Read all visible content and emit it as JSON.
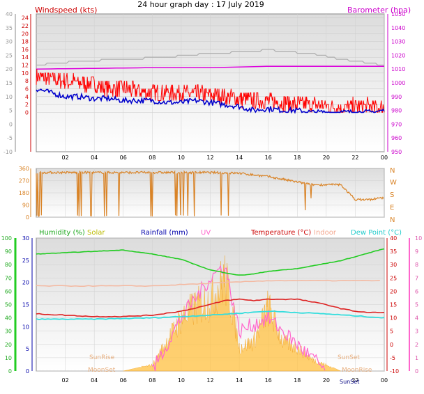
{
  "title": "24 hour graph day : 17 July 2019",
  "labels": {
    "windspeed": "Windspeed (kts)",
    "barometer": "Barometer (hpa)",
    "humidity": "Humidity (%)",
    "solar": "Solar",
    "rainfall": "Rainfall (mm)",
    "uv": "UV",
    "temperature": "Temperature (°C)",
    "indoor": "Indoor",
    "dewpoint": "Dew Point (°C)",
    "sunrise": "SunRise",
    "sunset": "SunSet",
    "moonset": "MoonSet",
    "moonrise": "MoonRise"
  },
  "colors": {
    "windspeed": "#cc0000",
    "gust": "#ff0000",
    "avg": "#0000cc",
    "barometer": "#dd00dd",
    "grey": "#b0b0b0",
    "direction": "#d98326",
    "humidity": "#22cc22",
    "solar": "#ffc040",
    "rainfall": "#0000aa",
    "uv": "#ff66cc",
    "temperature": "#dd2222",
    "indoor": "#f4b8a0",
    "dewpoint": "#33dddd",
    "yellow": "#cccc00"
  },
  "chart_data": [
    {
      "type": "line",
      "name": "wind",
      "x_ticks": [
        "02",
        "04",
        "06",
        "08",
        "10",
        "12",
        "14",
        "16",
        "18",
        "20",
        "22",
        "00"
      ],
      "ylim": [
        -10,
        25
      ],
      "yticks_left": [
        24,
        22,
        20,
        18,
        16,
        14,
        12,
        10,
        8,
        6,
        4,
        2,
        0
      ],
      "yticks_outer": [
        40,
        35,
        30,
        25,
        20,
        15,
        10,
        5,
        0,
        -5,
        -10
      ],
      "baro_ylim": [
        975,
        1050
      ],
      "yticks_baro": [
        1050,
        1040,
        1030,
        1020,
        1010,
        1000,
        990,
        980,
        970,
        960,
        950
      ],
      "series": [
        {
          "name": "gust",
          "values": [
            [
              0,
              9
            ],
            [
              1,
              8.5
            ],
            [
              2,
              8
            ],
            [
              3,
              7.5
            ],
            [
              4,
              7
            ],
            [
              5,
              6
            ],
            [
              6,
              6
            ],
            [
              7,
              5.5
            ],
            [
              8,
              5
            ],
            [
              9,
              5
            ],
            [
              10,
              5
            ],
            [
              11,
              4.5
            ],
            [
              12,
              4.5
            ],
            [
              13,
              4
            ],
            [
              14,
              3.5
            ],
            [
              15,
              3
            ],
            [
              16,
              3
            ],
            [
              17,
              2.5
            ],
            [
              18,
              2
            ],
            [
              19,
              2
            ],
            [
              20,
              1.5
            ],
            [
              21,
              1
            ],
            [
              22,
              1.5
            ],
            [
              23,
              1.5
            ],
            [
              24,
              1
            ]
          ]
        },
        {
          "name": "average",
          "values": [
            [
              0,
              6
            ],
            [
              1,
              5
            ],
            [
              2,
              4
            ],
            [
              3,
              4
            ],
            [
              4,
              3.5
            ],
            [
              5,
              3.5
            ],
            [
              6,
              3
            ],
            [
              7,
              3
            ],
            [
              8,
              3
            ],
            [
              9,
              2.5
            ],
            [
              10,
              2.5
            ],
            [
              11,
              3
            ],
            [
              12,
              2.5
            ],
            [
              13,
              2
            ],
            [
              14,
              1.5
            ],
            [
              15,
              0.5
            ],
            [
              16,
              1
            ],
            [
              17,
              0.5
            ],
            [
              18,
              0.5
            ],
            [
              19,
              0
            ],
            [
              20,
              0
            ],
            [
              21,
              0
            ],
            [
              22,
              0
            ],
            [
              23,
              0
            ],
            [
              24,
              0.5
            ]
          ]
        },
        {
          "name": "barometer",
          "values": [
            [
              0,
              1010
            ],
            [
              4,
              1010.5
            ],
            [
              8,
              1011
            ],
            [
              12,
              1011
            ],
            [
              16,
              1012
            ],
            [
              20,
              1012
            ],
            [
              24,
              1012
            ]
          ]
        },
        {
          "name": "grey",
          "values": [
            [
              0,
              12
            ],
            [
              3,
              13
            ],
            [
              6,
              13.5
            ],
            [
              9,
              14
            ],
            [
              12,
              15
            ],
            [
              15,
              15.5
            ],
            [
              16,
              16
            ],
            [
              17,
              15.5
            ],
            [
              19,
              15
            ],
            [
              21,
              13.5
            ],
            [
              23,
              12.5
            ],
            [
              24,
              12
            ]
          ]
        }
      ]
    },
    {
      "type": "line",
      "name": "wind direction",
      "x_ticks": [
        "02",
        "04",
        "06",
        "08",
        "10",
        "12",
        "14",
        "16",
        "18",
        "20",
        "22",
        "00"
      ],
      "ylim": [
        0,
        360
      ],
      "yticks": [
        360,
        270,
        180,
        90,
        0
      ],
      "compass": [
        "N",
        "W",
        "S",
        "E",
        "N"
      ],
      "series": [
        {
          "name": "direction",
          "values": [
            [
              0,
              330
            ],
            [
              4,
              330
            ],
            [
              8,
              330
            ],
            [
              12,
              330
            ],
            [
              14,
              325
            ],
            [
              16,
              300
            ],
            [
              17,
              280
            ],
            [
              18,
              260
            ],
            [
              19,
              240
            ],
            [
              20,
              240
            ],
            [
              21,
              240
            ],
            [
              22,
              130
            ],
            [
              23,
              130
            ],
            [
              24,
              145
            ]
          ]
        }
      ]
    },
    {
      "type": "line",
      "name": "climate",
      "x_ticks": [
        "02",
        "04",
        "06",
        "08",
        "10",
        "12",
        "14",
        "16",
        "18",
        "20",
        "22",
        "00"
      ],
      "humidity_ylim": [
        0,
        100
      ],
      "humidity_ticks": [
        100,
        90,
        80,
        70,
        60,
        50,
        40,
        30,
        20,
        10,
        0
      ],
      "rain_ylim": [
        0,
        30
      ],
      "rain_ticks": [
        30,
        25,
        20,
        15,
        10,
        5,
        0
      ],
      "temp_ylim": [
        -10,
        40
      ],
      "temp_ticks": [
        40,
        35,
        30,
        25,
        20,
        15,
        10,
        5,
        0,
        -5,
        -10
      ],
      "uv_ylim": [
        0,
        10
      ],
      "uv_ticks": [
        10,
        9,
        8,
        7,
        6,
        5,
        4,
        3,
        2,
        1,
        0
      ],
      "series": [
        {
          "name": "humidity",
          "values": [
            [
              0,
              88
            ],
            [
              2,
              89
            ],
            [
              4,
              90
            ],
            [
              6,
              91
            ],
            [
              8,
              88
            ],
            [
              10,
              84
            ],
            [
              12,
              76
            ],
            [
              14,
              72
            ],
            [
              15,
              73
            ],
            [
              16,
              75
            ],
            [
              17,
              76
            ],
            [
              18,
              77
            ],
            [
              19,
              79
            ],
            [
              20,
              81
            ],
            [
              21,
              83
            ],
            [
              22,
              86
            ],
            [
              23,
              89
            ],
            [
              24,
              92
            ]
          ]
        },
        {
          "name": "temperature",
          "values": [
            [
              0,
              11.5
            ],
            [
              2,
              11
            ],
            [
              4,
              10.5
            ],
            [
              6,
              10.5
            ],
            [
              8,
              11
            ],
            [
              10,
              12.5
            ],
            [
              12,
              15
            ],
            [
              13,
              16.5
            ],
            [
              14,
              17
            ],
            [
              15,
              16.5
            ],
            [
              16,
              17
            ],
            [
              17,
              17
            ],
            [
              18,
              17
            ],
            [
              19,
              16
            ],
            [
              20,
              15
            ],
            [
              21,
              13.5
            ],
            [
              22,
              12.5
            ],
            [
              23,
              12
            ],
            [
              24,
              12
            ]
          ]
        },
        {
          "name": "dewpoint",
          "values": [
            [
              0,
              9.5
            ],
            [
              4,
              9.5
            ],
            [
              8,
              10
            ],
            [
              12,
              11
            ],
            [
              16,
              12.5
            ],
            [
              20,
              11.5
            ],
            [
              24,
              10
            ]
          ]
        },
        {
          "name": "indoor",
          "values": [
            [
              0,
              22
            ],
            [
              4,
              22
            ],
            [
              8,
              22
            ],
            [
              12,
              23
            ],
            [
              16,
              24
            ],
            [
              20,
              24
            ],
            [
              24,
              24
            ]
          ]
        },
        {
          "name": "solar_percent",
          "values": [
            [
              6,
              0
            ],
            [
              8,
              5
            ],
            [
              9,
              25
            ],
            [
              10,
              45
            ],
            [
              11,
              55
            ],
            [
              12,
              60
            ],
            [
              13,
              80
            ],
            [
              13.5,
              55
            ],
            [
              14,
              20
            ],
            [
              15,
              25
            ],
            [
              16,
              55
            ],
            [
              17,
              25
            ],
            [
              18,
              20
            ],
            [
              19,
              10
            ],
            [
              20,
              5
            ],
            [
              21,
              0
            ]
          ]
        },
        {
          "name": "uv",
          "values": [
            [
              8,
              0
            ],
            [
              10,
              4
            ],
            [
              12,
              7
            ],
            [
              13,
              8
            ],
            [
              14,
              3
            ],
            [
              16,
              4
            ],
            [
              18,
              2
            ],
            [
              20,
              0
            ]
          ]
        }
      ]
    }
  ]
}
